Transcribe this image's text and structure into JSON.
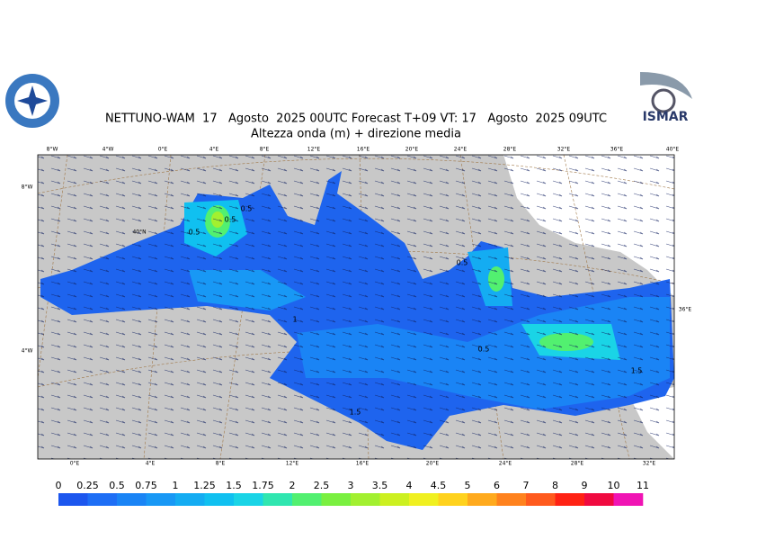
{
  "title": {
    "line1": "NETTUNO-WAM  17   Agosto  2025 00UTC Forecast T+09 VT: 17   Agosto  2025 09UTC",
    "line2": "Altezza onda (m) + direzione media"
  },
  "logo": {
    "right": "ISMAR"
  },
  "map": {
    "top_lon_labels": [
      "8°W",
      "4°W",
      "0°E",
      "4°E",
      "8°E",
      "12°E",
      "16°E",
      "20°E",
      "24°E",
      "28°E",
      "32°E",
      "36°E",
      "40°E"
    ],
    "bottom_lon_labels": [
      "0°E",
      "4°E",
      "8°E",
      "12°E",
      "16°E",
      "20°E",
      "24°E",
      "28°E",
      "32°E"
    ],
    "side_labels": [
      "8°W",
      "40°N",
      "4°W",
      "36°E"
    ],
    "contour_labels": [
      "0.5",
      "0.5",
      "0.5",
      "1",
      "0.5",
      "0.5",
      "1.5",
      "1.5"
    ]
  },
  "colorbar": {
    "labels": [
      "0",
      "0.25",
      "0.5",
      "0.75",
      "1",
      "1.25",
      "1.5",
      "1.75",
      "2",
      "2.5",
      "3",
      "3.5",
      "4",
      "4.5",
      "5",
      "6",
      "7",
      "8",
      "9",
      "10",
      "11"
    ],
    "colors": [
      "#1c56ee",
      "#1e6ef5",
      "#1a84f5",
      "#1898f5",
      "#14acf2",
      "#10c0f0",
      "#1ad4e6",
      "#30e6b0",
      "#52f070",
      "#7af040",
      "#a2f030",
      "#ccf020",
      "#f0f020",
      "#ffd21e",
      "#ffaa1e",
      "#ff821e",
      "#ff5a1e",
      "#ff2214",
      "#f00a40",
      "#f014b4"
    ]
  }
}
